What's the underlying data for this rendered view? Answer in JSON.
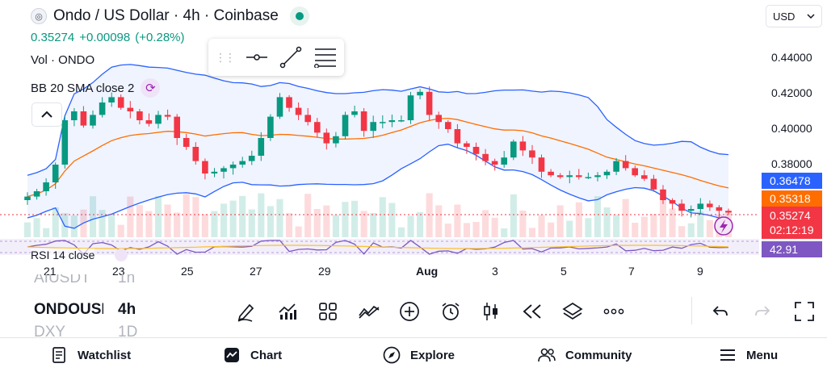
{
  "header": {
    "title": "Ondo / US Dollar · 4h · Coinbase",
    "logo_glyph": "◎"
  },
  "quote": {
    "last": "0.35274",
    "change": "+0.00098",
    "change_pct": "(+0.28%)"
  },
  "indicators": {
    "volume_label": "Vol · ONDO",
    "bb_label": "BB 20 SMA close 2",
    "rsi_label": "RSI 14 close"
  },
  "currency": {
    "value": "USD"
  },
  "price_axis": [
    "0.44000",
    "0.42000",
    "0.40000",
    "0.38000"
  ],
  "price_tags": {
    "bb_upper": "0.36478",
    "bb_basis": "0.35318",
    "last": "0.35274",
    "countdown": "02:12:19",
    "rsi": "42.91"
  },
  "time_axis": [
    "21",
    "23",
    "25",
    "27",
    "29",
    "Aug",
    "3",
    "5",
    "7",
    "9"
  ],
  "symbol_list": [
    {
      "symbol": "AIUSDT",
      "timeframe": "1h",
      "state": "faded"
    },
    {
      "symbol": "ONDOUSD",
      "timeframe": "4h",
      "state": "selected"
    },
    {
      "symbol": "DXY",
      "timeframe": "1D",
      "state": "faded"
    }
  ],
  "toolbar": {
    "items": [
      "brush-icon",
      "indicators-icon",
      "templates-icon",
      "compare-icon",
      "add-icon",
      "alert-icon",
      "candles-icon",
      "replay-icon",
      "layers-icon",
      "more-icon"
    ],
    "right": [
      "undo-icon",
      "redo-icon",
      "fullscreen-icon"
    ]
  },
  "nav": {
    "watchlist": "Watchlist",
    "chart": "Chart",
    "explore": "Explore",
    "community": "Community",
    "menu": "Menu"
  },
  "colors": {
    "up": "#089981",
    "down": "#f23645",
    "bb_band": "#2962ff",
    "bb_basis": "#ff6d00",
    "rsi": "#7e57c2",
    "accent_purple": "#9c27b0"
  },
  "chart_data": {
    "type": "candlestick",
    "symbol": "ONDO/USD",
    "interval": "4h",
    "ylim": [
      0.34,
      0.445
    ],
    "candles_close": [
      0.362,
      0.365,
      0.37,
      0.38,
      0.405,
      0.41,
      0.402,
      0.408,
      0.415,
      0.418,
      0.412,
      0.41,
      0.405,
      0.403,
      0.408,
      0.407,
      0.395,
      0.39,
      0.382,
      0.375,
      0.376,
      0.378,
      0.38,
      0.382,
      0.385,
      0.395,
      0.407,
      0.418,
      0.412,
      0.408,
      0.404,
      0.398,
      0.392,
      0.396,
      0.408,
      0.41,
      0.399,
      0.404,
      0.404,
      0.405,
      0.405,
      0.419,
      0.421,
      0.408,
      0.404,
      0.4,
      0.392,
      0.39,
      0.386,
      0.382,
      0.38,
      0.384,
      0.393,
      0.388,
      0.384,
      0.376,
      0.374,
      0.373,
      0.374,
      0.373,
      0.373,
      0.374,
      0.376,
      0.382,
      0.378,
      0.374,
      0.372,
      0.366,
      0.36,
      0.358,
      0.354,
      0.355,
      0.358,
      0.356,
      0.354,
      0.353
    ],
    "bb_upper_end": 0.36478,
    "bb_basis_end": 0.35318,
    "rsi_last": 42.91
  }
}
